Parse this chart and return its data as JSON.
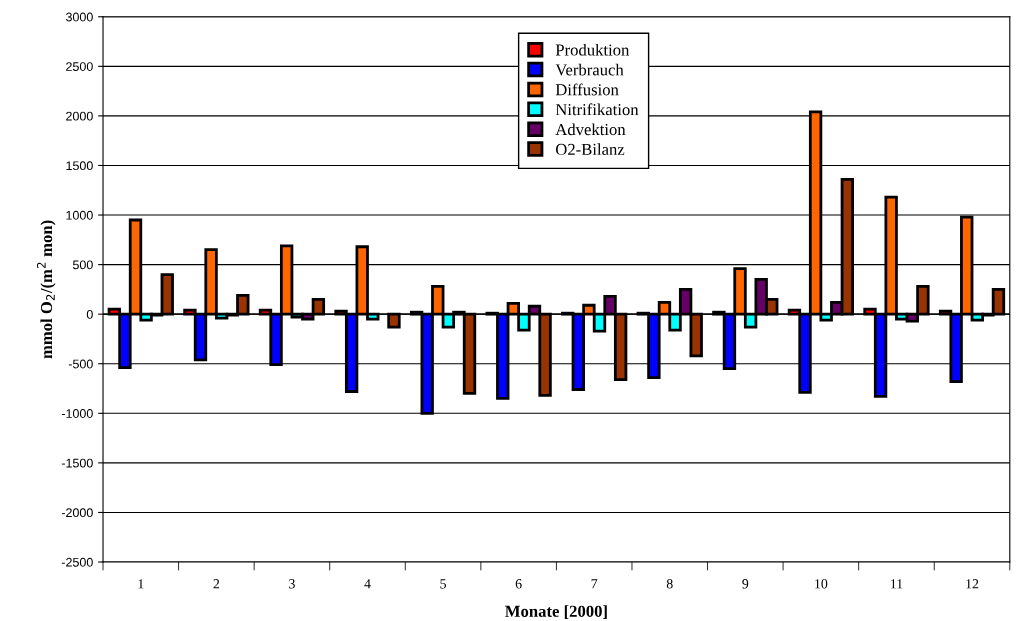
{
  "chart_data": {
    "type": "bar",
    "xlabel": "Monate [2000]",
    "ylabel": "mmol O$_{2}$/(m$^{2}$ mon)",
    "categories": [
      "1",
      "2",
      "3",
      "4",
      "5",
      "6",
      "7",
      "8",
      "9",
      "10",
      "11",
      "12"
    ],
    "series": [
      {
        "name": "Produktion",
        "color": "#ff0000",
        "values": [
          50,
          40,
          40,
          30,
          20,
          10,
          10,
          10,
          20,
          40,
          50,
          30
        ]
      },
      {
        "name": "Verbrauch",
        "color": "#0000ff",
        "values": [
          -540,
          -460,
          -510,
          -780,
          -1000,
          -850,
          -760,
          -640,
          -550,
          -790,
          -830,
          -680
        ]
      },
      {
        "name": "Diffusion",
        "color": "#ff6600",
        "values": [
          950,
          650,
          690,
          680,
          280,
          110,
          90,
          120,
          460,
          2040,
          1180,
          980
        ]
      },
      {
        "name": "Nitrifikation",
        "color": "#00ffff",
        "values": [
          -60,
          -40,
          -30,
          -50,
          -130,
          -160,
          -170,
          -160,
          -130,
          -60,
          -50,
          -60
        ]
      },
      {
        "name": "Advektion",
        "color": "#660066",
        "values": [
          -10,
          -10,
          -50,
          null,
          20,
          80,
          180,
          250,
          350,
          120,
          -70,
          -10
        ]
      },
      {
        "name": "O2-Bilanz",
        "color": "#993300",
        "values": [
          400,
          190,
          150,
          -130,
          -800,
          -820,
          -660,
          -420,
          150,
          1360,
          280,
          250
        ]
      }
    ],
    "ylim": [
      -2500,
      3000
    ],
    "yticks": [
      -2500,
      -2000,
      -1500,
      -1000,
      -500,
      0,
      500,
      1000,
      1500,
      2000,
      2500,
      3000
    ],
    "grid": "y",
    "legend": "top"
  }
}
